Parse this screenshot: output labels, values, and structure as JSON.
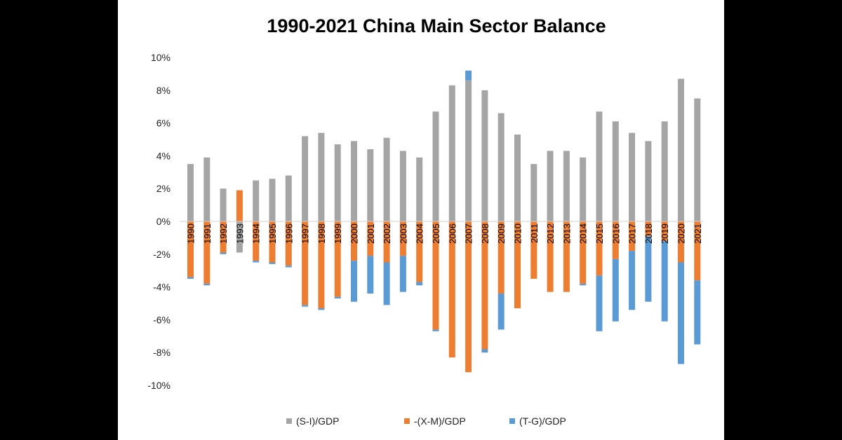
{
  "chart_data": {
    "type": "bar",
    "stacked": true,
    "title": "1990-2021 China Main Sector Balance",
    "xlabel": "",
    "ylabel": "",
    "ylim": [
      -0.1,
      0.1
    ],
    "yticks": [
      0.1,
      0.08,
      0.06,
      0.04,
      0.02,
      0.0,
      -0.02,
      -0.04,
      -0.06,
      -0.08,
      -0.1
    ],
    "ytick_labels": [
      "10%",
      "8%",
      "6%",
      "4%",
      "2%",
      "0%",
      "-2%",
      "-4%",
      "-6%",
      "-8%",
      "-10%"
    ],
    "grid": false,
    "legend_position": "bottom",
    "categories": [
      "1990",
      "1991",
      "1992",
      "1993",
      "1994",
      "1995",
      "1996",
      "1997",
      "1998",
      "1999",
      "2000",
      "2001",
      "2002",
      "2003",
      "2004",
      "2005",
      "2006",
      "2007",
      "2008",
      "2009",
      "2010",
      "2011",
      "2012",
      "2013",
      "2014",
      "2015",
      "2016",
      "2017",
      "2018",
      "2019",
      "2020",
      "2021"
    ],
    "series": [
      {
        "name": "(S-I)/GDP",
        "color": "#a5a5a5",
        "values": [
          0.035,
          0.039,
          0.02,
          -0.019,
          0.025,
          0.026,
          0.028,
          0.052,
          0.054,
          0.047,
          0.049,
          0.044,
          0.051,
          0.043,
          0.039,
          0.067,
          0.083,
          0.086,
          0.08,
          0.066,
          0.053,
          0.035,
          0.043,
          0.043,
          0.039,
          0.067,
          0.061,
          0.054,
          0.049,
          0.061,
          0.087,
          0.075
        ]
      },
      {
        "name": "-(X-M)/GDP",
        "color": "#ed7d31",
        "values": [
          -0.034,
          -0.038,
          -0.019,
          0.019,
          -0.024,
          -0.025,
          -0.027,
          -0.051,
          -0.053,
          -0.046,
          -0.024,
          -0.021,
          -0.025,
          -0.021,
          -0.037,
          -0.066,
          -0.083,
          -0.092,
          -0.078,
          -0.044,
          -0.053,
          -0.035,
          -0.043,
          -0.043,
          -0.038,
          -0.033,
          -0.023,
          -0.018,
          -0.009,
          -0.012,
          -0.025,
          -0.036
        ]
      },
      {
        "name": "(T-G)/GDP",
        "color": "#5b9bd5",
        "values": [
          -0.001,
          -0.001,
          -0.001,
          0.0,
          -0.001,
          -0.001,
          -0.001,
          -0.001,
          -0.001,
          -0.001,
          -0.025,
          -0.023,
          -0.026,
          -0.022,
          -0.002,
          -0.001,
          0.0,
          0.006,
          -0.002,
          -0.022,
          0.0,
          0.0,
          0.0,
          0.0,
          -0.001,
          -0.034,
          -0.038,
          -0.036,
          -0.04,
          -0.049,
          -0.062,
          -0.039
        ]
      }
    ]
  }
}
